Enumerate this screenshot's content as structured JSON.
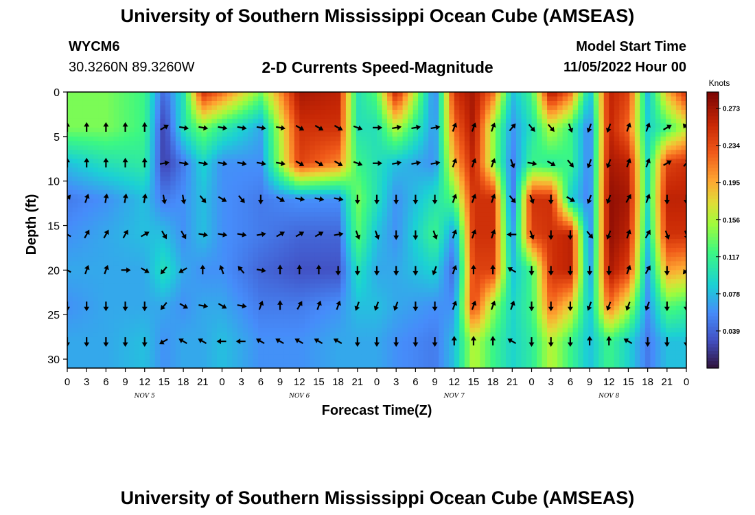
{
  "page": {
    "title_top": "University of Southern Mississippi Ocean Cube (AMSEAS)",
    "title_bottom": "University of Southern Mississippi Ocean Cube (AMSEAS)",
    "station_id": "WYCM6",
    "station_coords": "30.3260N  89.3260W",
    "plot_title": "2-D Currents Speed-Magnitude",
    "model_start_label": "Model Start Time",
    "model_start_value": "11/05/2022 Hour 00"
  },
  "chart_data": {
    "type": "heatmap",
    "title": "2-D Currents Speed-Magnitude",
    "xlabel": "Forecast Time(Z)",
    "ylabel": "Depth (ft)",
    "x_hours": [
      0,
      96
    ],
    "ylim": [
      0,
      31
    ],
    "x_tick_labels": [
      "0",
      "3",
      "6",
      "9",
      "12",
      "15",
      "18",
      "21",
      "0",
      "3",
      "6",
      "9",
      "12",
      "15",
      "18",
      "21",
      "0",
      "3",
      "6",
      "9",
      "12",
      "15",
      "18",
      "21",
      "0",
      "3",
      "6",
      "9",
      "12",
      "15",
      "18",
      "21",
      "0"
    ],
    "y_tick_labels": [
      "0",
      "5",
      "10",
      "15",
      "20",
      "25",
      "30"
    ],
    "day_labels": [
      {
        "label": "NOV 5",
        "hour": 12
      },
      {
        "label": "NOV 6",
        "hour": 36
      },
      {
        "label": "NOV 7",
        "hour": 60
      },
      {
        "label": "NOV 8",
        "hour": 84
      }
    ],
    "colorbar": {
      "unit": "Knots",
      "min": 0.0,
      "max": 0.29,
      "ticks": [
        "0.273",
        "0.234",
        "0.195",
        "0.156",
        "0.117",
        "0.078",
        "0.039"
      ]
    },
    "depth_levels_ft": [
      0,
      4,
      8,
      12,
      16,
      20,
      24,
      28
    ],
    "speed_profiles": [
      {
        "hour": 0,
        "values": [
          0.14,
          0.14,
          0.08,
          0.05,
          0.06,
          0.07,
          0.06,
          0.07
        ]
      },
      {
        "hour": 6,
        "values": [
          0.14,
          0.14,
          0.1,
          0.06,
          0.07,
          0.07,
          0.07,
          0.07
        ]
      },
      {
        "hour": 12,
        "values": [
          0.12,
          0.12,
          0.11,
          0.08,
          0.08,
          0.07,
          0.07,
          0.08
        ]
      },
      {
        "hour": 15,
        "values": [
          0.04,
          0.02,
          0.02,
          0.05,
          0.08,
          0.1,
          0.07,
          0.06
        ]
      },
      {
        "hour": 18,
        "values": [
          0.1,
          0.1,
          0.05,
          0.06,
          0.06,
          0.07,
          0.06,
          0.07
        ]
      },
      {
        "hour": 21,
        "values": [
          0.25,
          0.14,
          0.09,
          0.08,
          0.08,
          0.06,
          0.07,
          0.07
        ]
      },
      {
        "hour": 24,
        "values": [
          0.22,
          0.11,
          0.06,
          0.06,
          0.06,
          0.06,
          0.07,
          0.08
        ]
      },
      {
        "hour": 30,
        "values": [
          0.14,
          0.07,
          0.06,
          0.05,
          0.05,
          0.04,
          0.05,
          0.06
        ]
      },
      {
        "hour": 36,
        "values": [
          0.27,
          0.25,
          0.24,
          0.06,
          0.04,
          0.03,
          0.05,
          0.06
        ]
      },
      {
        "hour": 42,
        "values": [
          0.26,
          0.25,
          0.21,
          0.06,
          0.04,
          0.03,
          0.06,
          0.07
        ]
      },
      {
        "hour": 45,
        "values": [
          0.1,
          0.1,
          0.12,
          0.14,
          0.13,
          0.1,
          0.08,
          0.07
        ]
      },
      {
        "hour": 48,
        "values": [
          0.13,
          0.1,
          0.1,
          0.1,
          0.08,
          0.07,
          0.08,
          0.07
        ]
      },
      {
        "hour": 51,
        "values": [
          0.26,
          0.16,
          0.08,
          0.06,
          0.06,
          0.07,
          0.07,
          0.06
        ]
      },
      {
        "hour": 57,
        "values": [
          0.05,
          0.06,
          0.06,
          0.1,
          0.12,
          0.09,
          0.06,
          0.05
        ]
      },
      {
        "hour": 60,
        "values": [
          0.25,
          0.22,
          0.19,
          0.13,
          0.06,
          0.04,
          0.06,
          0.08
        ]
      },
      {
        "hour": 63,
        "values": [
          0.27,
          0.27,
          0.26,
          0.25,
          0.25,
          0.24,
          0.24,
          0.16
        ]
      },
      {
        "hour": 66,
        "values": [
          0.22,
          0.15,
          0.15,
          0.25,
          0.25,
          0.24,
          0.15,
          0.12
        ]
      },
      {
        "hour": 69,
        "values": [
          0.08,
          0.06,
          0.05,
          0.04,
          0.06,
          0.08,
          0.09,
          0.09
        ]
      },
      {
        "hour": 72,
        "values": [
          0.12,
          0.1,
          0.12,
          0.25,
          0.24,
          0.12,
          0.12,
          0.11
        ]
      },
      {
        "hour": 75,
        "values": [
          0.27,
          0.16,
          0.11,
          0.25,
          0.25,
          0.25,
          0.22,
          0.16
        ]
      },
      {
        "hour": 78,
        "values": [
          0.22,
          0.12,
          0.12,
          0.09,
          0.26,
          0.26,
          0.18,
          0.12
        ]
      },
      {
        "hour": 81,
        "values": [
          0.08,
          0.05,
          0.05,
          0.05,
          0.05,
          0.06,
          0.08,
          0.08
        ]
      },
      {
        "hour": 84,
        "values": [
          0.26,
          0.26,
          0.27,
          0.28,
          0.28,
          0.27,
          0.22,
          0.12
        ]
      },
      {
        "hour": 87,
        "values": [
          0.24,
          0.22,
          0.26,
          0.27,
          0.26,
          0.24,
          0.16,
          0.09
        ]
      },
      {
        "hour": 90,
        "values": [
          0.08,
          0.09,
          0.1,
          0.1,
          0.09,
          0.07,
          0.06,
          0.05
        ]
      },
      {
        "hour": 93,
        "values": [
          0.19,
          0.12,
          0.24,
          0.26,
          0.25,
          0.2,
          0.13,
          0.08
        ]
      },
      {
        "hour": 96,
        "values": [
          0.25,
          0.16,
          0.25,
          0.26,
          0.25,
          0.19,
          0.12,
          0.08
        ]
      }
    ],
    "vector_depths_ft": [
      4,
      8,
      12,
      16,
      20,
      24,
      28
    ],
    "vector_hours": [
      0,
      3,
      6,
      9,
      12,
      15,
      18,
      21,
      24,
      27,
      30,
      33,
      36,
      39,
      42,
      45,
      48,
      51,
      54,
      57,
      60,
      63,
      66,
      69,
      72,
      75,
      78,
      81,
      84,
      87,
      90,
      93,
      96
    ],
    "vector_directions_deg": [
      [
        0,
        0,
        0,
        0,
        0,
        60,
        100,
        100,
        100,
        100,
        100,
        100,
        120,
        120,
        120,
        110,
        90,
        80,
        80,
        80,
        20,
        20,
        20,
        40,
        140,
        140,
        160,
        200,
        200,
        20,
        20,
        60,
        320
      ],
      [
        0,
        0,
        0,
        0,
        0,
        80,
        100,
        100,
        100,
        100,
        100,
        100,
        120,
        120,
        120,
        110,
        90,
        80,
        80,
        80,
        20,
        20,
        20,
        160,
        100,
        120,
        140,
        200,
        200,
        20,
        20,
        60,
        40
      ],
      [
        40,
        20,
        10,
        10,
        10,
        170,
        170,
        140,
        120,
        140,
        180,
        120,
        100,
        100,
        100,
        180,
        180,
        180,
        180,
        180,
        20,
        20,
        20,
        140,
        160,
        180,
        120,
        200,
        200,
        30,
        20,
        180,
        180
      ],
      [
        300,
        30,
        30,
        30,
        60,
        150,
        150,
        100,
        100,
        100,
        80,
        60,
        60,
        60,
        80,
        160,
        160,
        180,
        180,
        160,
        20,
        20,
        20,
        270,
        160,
        180,
        180,
        140,
        200,
        20,
        30,
        160,
        160
      ],
      [
        300,
        20,
        20,
        90,
        120,
        220,
        240,
        0,
        340,
        320,
        100,
        0,
        0,
        0,
        180,
        180,
        180,
        180,
        180,
        200,
        20,
        0,
        0,
        300,
        180,
        180,
        180,
        180,
        180,
        20,
        30,
        180,
        220
      ],
      [
        180,
        180,
        180,
        180,
        180,
        220,
        120,
        100,
        120,
        100,
        20,
        0,
        30,
        20,
        20,
        200,
        200,
        200,
        180,
        180,
        20,
        20,
        20,
        20,
        180,
        180,
        180,
        200,
        200,
        200,
        200,
        180,
        180
      ],
      [
        180,
        180,
        180,
        180,
        180,
        240,
        300,
        300,
        270,
        270,
        300,
        300,
        300,
        300,
        300,
        180,
        180,
        180,
        180,
        180,
        0,
        0,
        0,
        300,
        180,
        180,
        180,
        0,
        0,
        300,
        180,
        180,
        180
      ]
    ]
  }
}
